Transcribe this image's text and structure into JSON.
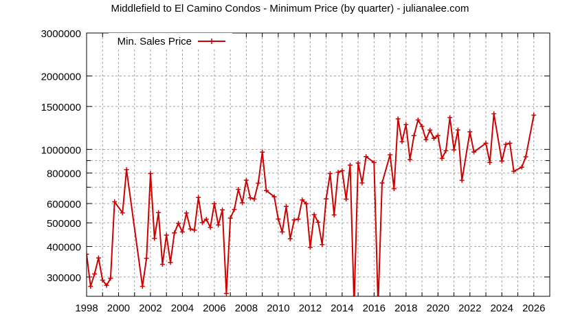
{
  "chart_data": {
    "type": "line",
    "title": "Middlefield to El Camino Condos - Minimum Price (by quarter) - julianalee.com",
    "xlabel": "",
    "ylabel": "",
    "y_scale": "log",
    "xlim": [
      1998,
      2027
    ],
    "ylim": [
      250000,
      3000000
    ],
    "grid": true,
    "legend_position": "top-left",
    "x_ticks": [
      "1998",
      "2000",
      "2002",
      "2004",
      "2006",
      "2008",
      "2010",
      "2012",
      "2014",
      "2016",
      "2018",
      "2020",
      "2022",
      "2024",
      "2026"
    ],
    "y_ticks": [
      "300000",
      "400000",
      "500000",
      "600000",
      "800000",
      "1000000",
      "1500000",
      "2000000",
      "3000000"
    ],
    "series": [
      {
        "name": "Min. Sales Price",
        "color": "#cc0000",
        "marker": "+",
        "x": [
          1998.0,
          1998.25,
          1998.5,
          1998.75,
          1999.0,
          1999.25,
          1999.5,
          1999.75,
          2000.25,
          2000.5,
          2001.5,
          2001.75,
          2002.0,
          2002.25,
          2002.5,
          2002.75,
          2003.0,
          2003.25,
          2003.5,
          2003.75,
          2004.0,
          2004.25,
          2004.5,
          2004.75,
          2005.0,
          2005.25,
          2005.5,
          2005.75,
          2006.0,
          2006.25,
          2006.5,
          2006.75,
          2007.0,
          2007.25,
          2007.5,
          2007.75,
          2008.0,
          2008.25,
          2008.5,
          2008.75,
          2009.0,
          2009.25,
          2009.75,
          2010.0,
          2010.25,
          2010.5,
          2010.75,
          2011.0,
          2011.25,
          2011.5,
          2011.75,
          2012.0,
          2012.25,
          2012.5,
          2012.75,
          2013.0,
          2013.25,
          2013.5,
          2013.75,
          2014.0,
          2014.25,
          2014.5,
          2014.75,
          2015.0,
          2015.25,
          2015.5,
          2016.0,
          2016.25,
          2016.5,
          2017.0,
          2017.25,
          2017.5,
          2017.75,
          2018.0,
          2018.25,
          2018.5,
          2018.75,
          2019.0,
          2019.25,
          2019.5,
          2019.75,
          2020.0,
          2020.25,
          2020.5,
          2020.75,
          2021.0,
          2021.25,
          2021.5,
          2022.0,
          2022.25,
          2023.0,
          2023.25,
          2023.5,
          2024.0,
          2024.25,
          2024.5,
          2024.75,
          2025.25,
          2025.5,
          2026.0
        ],
        "values": [
          372000,
          274600,
          308700,
          359400,
          291100,
          277100,
          296300,
          610100,
          549700,
          826600,
          274600,
          357800,
          796400,
          432100,
          550800,
          338100,
          445500,
          344100,
          455100,
          497600,
          458900,
          548600,
          472200,
          467000,
          635600,
          500800,
          517300,
          479300,
          599300,
          489800,
          565400,
          256800,
          522800,
          567800,
          685800,
          604700,
          747900,
          633200,
          626200,
          727300,
          974300,
          678300,
          639600,
          518400,
          458900,
          583800,
          430100,
          514100,
          517300,
          620900,
          599300,
          397000,
          540200,
          502800,
          407400,
          627000,
          796400,
          539100,
          806600,
          817700,
          625700,
          862800,
          230000,
          879800,
          728700,
          935200,
          883700,
          230000,
          728700,
          951100,
          690200,
          1334000,
          1076000,
          1264000,
          908800,
          1139000,
          1320000,
          1242000,
          1097000,
          1200000,
          1110000,
          1139000,
          918900,
          987100,
          1351000,
          995400,
          1202000,
          746500,
          1180000,
          976100,
          1060000,
          883700,
          1400000,
          895200,
          1049000,
          1060000,
          813600,
          846200,
          932800,
          1382000
        ]
      }
    ]
  },
  "legend": {
    "label": "Min. Sales Price"
  }
}
